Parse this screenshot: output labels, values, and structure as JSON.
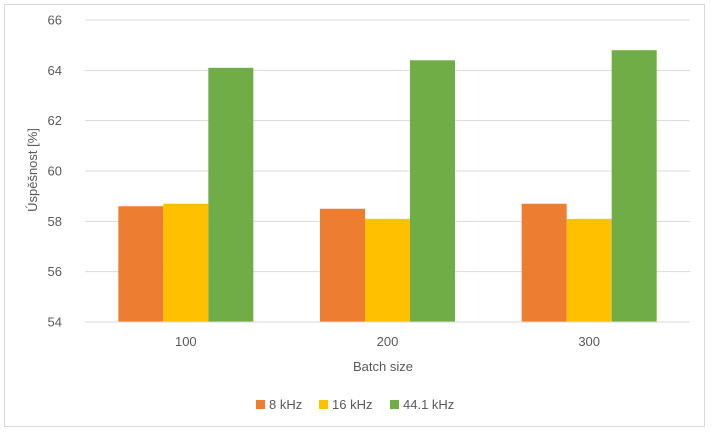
{
  "chart_data": {
    "type": "bar",
    "title": "",
    "xlabel": "Batch size",
    "ylabel": "Úspěšnost [%]",
    "categories": [
      "100",
      "200",
      "300"
    ],
    "series": [
      {
        "name": "8 kHz",
        "color": "#ED7D31",
        "values": [
          58.6,
          58.5,
          58.7
        ]
      },
      {
        "name": "16 kHz",
        "color": "#FFC000",
        "values": [
          58.7,
          58.1,
          58.1
        ]
      },
      {
        "name": "44.1 kHz",
        "color": "#70AD47",
        "values": [
          64.1,
          64.4,
          64.8
        ]
      }
    ],
    "ylim": [
      54,
      66
    ],
    "yticks": [
      "54",
      "56",
      "58",
      "60",
      "62",
      "64",
      "66"
    ],
    "grid": true,
    "legend_position": "bottom"
  }
}
